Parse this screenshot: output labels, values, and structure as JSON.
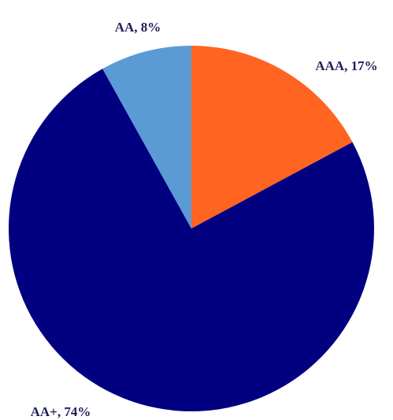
{
  "chart_data": {
    "type": "pie",
    "slices": [
      {
        "label": "AAA",
        "value": 17,
        "display": "AAA, 17%",
        "color": "#FF6421"
      },
      {
        "label": "AA+",
        "value": 74,
        "display": "AA+, 74%",
        "color": "#000080"
      },
      {
        "label": "AA",
        "value": 8,
        "display": "AA, 8%",
        "color": "#5B9BD5"
      }
    ],
    "start": "12 o'clock",
    "direction": "clockwise",
    "legend": "none",
    "data_labels": "outside"
  }
}
